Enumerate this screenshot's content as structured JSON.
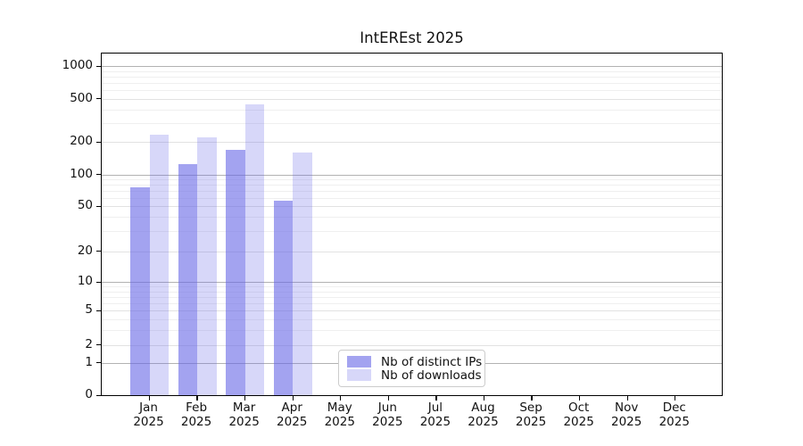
{
  "title": "IntEREst 2025",
  "chart_data": {
    "type": "bar",
    "title": "IntEREst 2025",
    "categories": [
      "Jan 2025",
      "Feb 2025",
      "Mar 2025",
      "Apr 2025",
      "May 2025",
      "Jun 2025",
      "Jul 2025",
      "Aug 2025",
      "Sep 2025",
      "Oct 2025",
      "Nov 2025",
      "Dec 2025"
    ],
    "series": [
      {
        "name": "Nb of distinct IPs",
        "color": "rgba(102,102,230,0.60)",
        "values": [
          75,
          125,
          170,
          56,
          0,
          0,
          0,
          0,
          0,
          0,
          0,
          0
        ]
      },
      {
        "name": "Nb of downloads",
        "color": "rgba(102,102,230,0.26)",
        "values": [
          235,
          222,
          445,
          160,
          0,
          0,
          0,
          0,
          0,
          0,
          0,
          0
        ]
      }
    ],
    "xlabel": "",
    "ylabel": "",
    "yscale": "symlog",
    "yticks": [
      0,
      1,
      2,
      5,
      10,
      20,
      50,
      100,
      200,
      500,
      1000
    ],
    "ylim": [
      0,
      1300
    ],
    "grid": true,
    "legend_position": "lower center"
  },
  "y_axis": {
    "tick_labels": [
      "1000",
      "500",
      "200",
      "100",
      "50",
      "20",
      "10",
      "5",
      "2",
      "1",
      "0"
    ]
  },
  "x_axis": {
    "year": "2025",
    "months": [
      "Jan",
      "Feb",
      "Mar",
      "Apr",
      "May",
      "Jun",
      "Jul",
      "Aug",
      "Sep",
      "Oct",
      "Nov",
      "Dec"
    ]
  },
  "legend": {
    "items": [
      {
        "label": "Nb of distinct IPs"
      },
      {
        "label": "Nb of downloads"
      }
    ]
  },
  "colors": {
    "grid_major": "#b2b2b2",
    "grid_mid": "#e2e2e2",
    "grid_minor": "#efefef",
    "axis": "#000000",
    "text": "#111111",
    "legend_border": "#cccccc"
  }
}
